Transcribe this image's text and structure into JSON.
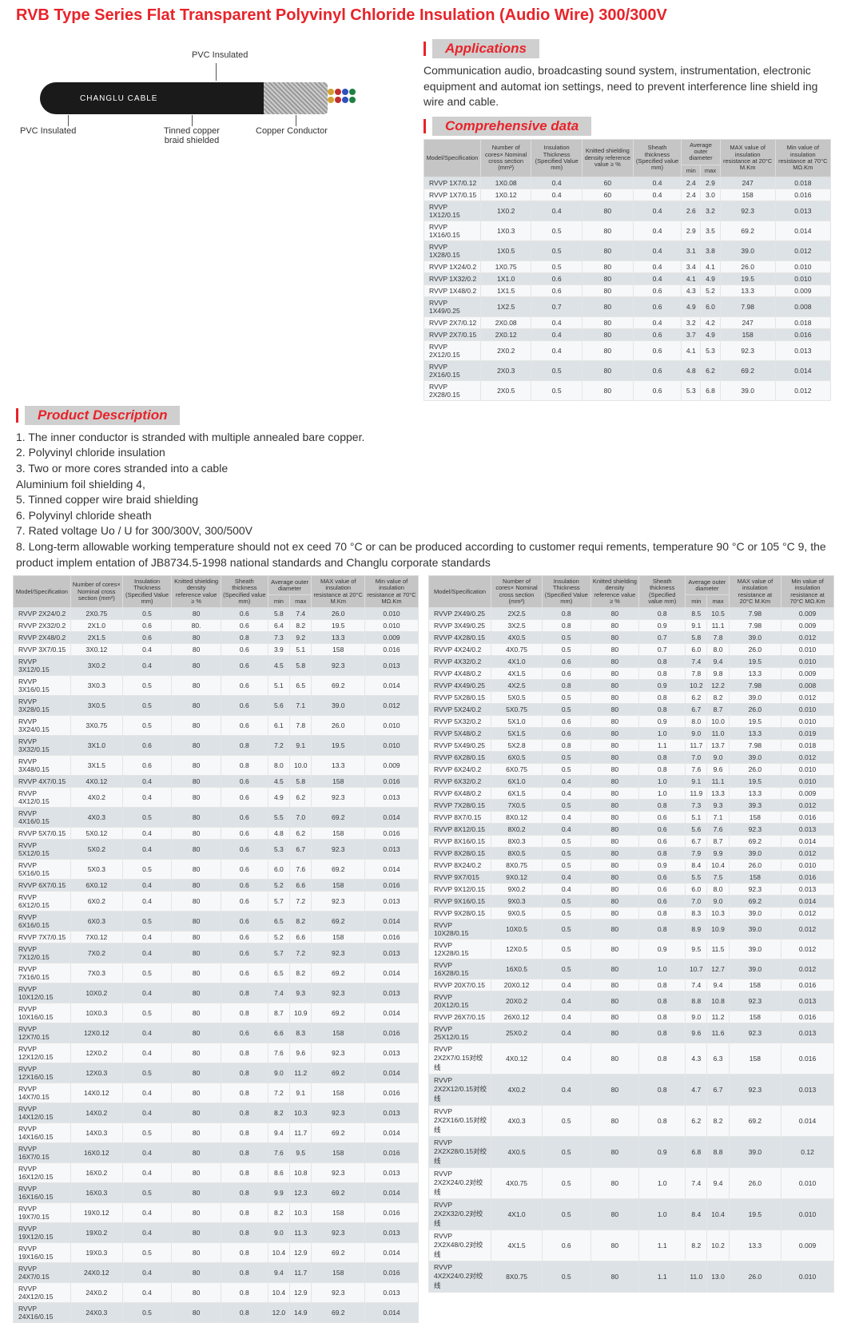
{
  "title": "RVB Type Series Flat Transparent Polyvinyl Chloride Insulation (Audio Wire) 300/300V",
  "diagram": {
    "brand": "CHANGLU CABLE",
    "labels": {
      "top": "PVC Insulated",
      "bl": "PVC Insulated",
      "bc": "Tinned copper braid shielded",
      "br": "Copper Conductor"
    },
    "conductor_colors": [
      "#d4a030",
      "#c03030",
      "#3050c0",
      "#208040"
    ]
  },
  "sections": {
    "applications": "Applications",
    "product_desc": "Product Description",
    "comp_data": "Comprehensive data"
  },
  "applications_text": "Communication audio, broadcasting sound system, instrumentation, electronic equipment and automat ion settings, need to prevent interference line shield ing wire and cable.",
  "desc_text": "1. The inner conductor is stranded with multiple annealed bare copper.\n2. Polyvinyl chloride insulation\n3. Two or more cores stranded into a cable\nAluminium foil shielding 4,\n5. Tinned copper wire braid shielding\n6. Polyvinyl chloride sheath\n7. Rated voltage Uo / U for 300/300V, 300/500V\n8. Long-term allowable working temperature should not ex ceed 70 °C or can be produced according to customer requi rements, temperature 90 °C or 105 °C 9, the product implem entation of JB8734.5-1998 national standards and Changlu corporate standards",
  "table_headers": [
    {
      "label": "Model/Specification",
      "span": 1
    },
    {
      "label": "Number of cores× Nominal cross section (mm²)",
      "span": 1
    },
    {
      "label": "Insulation Thickness (Specified Value mm)",
      "span": 1
    },
    {
      "label": "Knitted shielding density reference value ≥ %",
      "span": 1
    },
    {
      "label": "Sheath thickness (Specified value mm)",
      "span": 1
    },
    {
      "label": "Average outer diameter",
      "span": 2,
      "sub": [
        "min",
        "max"
      ]
    },
    {
      "label": "MAX value of insulation resistance at 20°C M.Km",
      "span": 1
    },
    {
      "label": "Min value of insulation resistance at 70°C MΩ.Km",
      "span": 1
    }
  ],
  "table_top_right": [
    [
      "RVVP 1X7/0.12",
      "1X0.08",
      "0.4",
      "60",
      "0.4",
      "2.4",
      "2.9",
      "247",
      "0.018"
    ],
    [
      "RVVP 1X7/0.15",
      "1X0.12",
      "0.4",
      "60",
      "0.4",
      "2.4",
      "3.0",
      "158",
      "0.016"
    ],
    [
      "RVVP 1X12/0.15",
      "1X0.2",
      "0.4",
      "80",
      "0.4",
      "2.6",
      "3.2",
      "92.3",
      "0.013"
    ],
    [
      "RVVP 1X16/0.15",
      "1X0.3",
      "0.5",
      "80",
      "0.4",
      "2.9",
      "3.5",
      "69.2",
      "0.014"
    ],
    [
      "RVVP 1X28/0.15",
      "1X0.5",
      "0.5",
      "80",
      "0.4",
      "3.1",
      "3.8",
      "39.0",
      "0.012"
    ],
    [
      "RVVP 1X24/0.2",
      "1X0.75",
      "0.5",
      "80",
      "0.4",
      "3.4",
      "4.1",
      "26.0",
      "0.010"
    ],
    [
      "RVVP 1X32/0.2",
      "1X1.0",
      "0.6",
      "80",
      "0.4",
      "4.1",
      "4.9",
      "19.5",
      "0.010"
    ],
    [
      "RVVP 1X48/0.2",
      "1X1.5",
      "0.6",
      "80",
      "0.6",
      "4.3",
      "5.2",
      "13.3",
      "0.009"
    ],
    [
      "RVVP 1X49/0.25",
      "1X2.5",
      "0.7",
      "80",
      "0.6",
      "4.9",
      "6.0",
      "7.98",
      "0.008"
    ],
    [
      "RVVP 2X7/0.12",
      "2X0.08",
      "0.4",
      "80",
      "0.4",
      "3.2",
      "4.2",
      "247",
      "0.018"
    ],
    [
      "RVVP 2X7/0.15",
      "2X0.12",
      "0.4",
      "80",
      "0.6",
      "3.7",
      "4.9",
      "158",
      "0.016"
    ],
    [
      "RVVP 2X12/0.15",
      "2X0.2",
      "0.4",
      "80",
      "0.6",
      "4.1",
      "5.3",
      "92.3",
      "0.013"
    ],
    [
      "RVVP 2X16/0.15",
      "2X0.3",
      "0.5",
      "80",
      "0.6",
      "4.8",
      "6.2",
      "69.2",
      "0.014"
    ],
    [
      "RVVP 2X28/0.15",
      "2X0.5",
      "0.5",
      "80",
      "0.6",
      "5.3",
      "6.8",
      "39.0",
      "0.012"
    ]
  ],
  "table_left": [
    [
      "RVVP 2X24/0.2",
      "2X0.75",
      "0.5",
      "80",
      "0.6",
      "5.8",
      "7.4",
      "26.0",
      "0.010"
    ],
    [
      "RVVP 2X32/0.2",
      "2X1.0",
      "0.6",
      "80.",
      "0.6",
      "6.4",
      "8.2",
      "19.5",
      "0.010"
    ],
    [
      "RVVP 2X48/0.2",
      "2X1.5",
      "0.6",
      "80",
      "0.8",
      "7.3",
      "9.2",
      "13.3",
      "0.009"
    ],
    [
      "RVVP 3X7/0.15",
      "3X0.12",
      "0.4",
      "80",
      "0.6",
      "3.9",
      "5.1",
      "158",
      "0.016"
    ],
    [
      "RVVP 3X12/0.15",
      "3X0.2",
      "0.4",
      "80",
      "0.6",
      "4.5",
      "5.8",
      "92.3",
      "0.013"
    ],
    [
      "RVVP 3X16/0.15",
      "3X0.3",
      "0.5",
      "80",
      "0.6",
      "5.1",
      "6.5",
      "69.2",
      "0.014"
    ],
    [
      "RVVP 3X28/0.15",
      "3X0.5",
      "0.5",
      "80",
      "0.6",
      "5.6",
      "7.1",
      "39.0",
      "0.012"
    ],
    [
      "RVVP 3X24/0.15",
      "3X0.75",
      "0.5",
      "80",
      "0.6",
      "6.1",
      "7.8",
      "26.0",
      "0.010"
    ],
    [
      "RVVP 3X32/0.15",
      "3X1.0",
      "0.6",
      "80",
      "0.8",
      "7.2",
      "9.1",
      "19.5",
      "0.010"
    ],
    [
      "RVVP 3X48/0.15",
      "3X1.5",
      "0.6",
      "80",
      "0.8",
      "8.0",
      "10.0",
      "13.3",
      "0.009"
    ],
    [
      "RVVP 4X7/0.15",
      "4X0.12",
      "0.4",
      "80",
      "0.6",
      "4.5",
      "5.8",
      "158",
      "0.016"
    ],
    [
      "RVVP 4X12/0.15",
      "4X0.2",
      "0.4",
      "80",
      "0.6",
      "4.9",
      "6.2",
      "92.3",
      "0.013"
    ],
    [
      "RVVP 4X16/0.15",
      "4X0.3",
      "0.5",
      "80",
      "0.6",
      "5.5",
      "7.0",
      "69.2",
      "0.014"
    ],
    [
      "RVVP 5X7/0.15",
      "5X0.12",
      "0.4",
      "80",
      "0.6",
      "4.8",
      "6.2",
      "158",
      "0.016"
    ],
    [
      "RVVP 5X12/0.15",
      "5X0.2",
      "0.4",
      "80",
      "0.6",
      "5.3",
      "6.7",
      "92.3",
      "0.013"
    ],
    [
      "RVVP 5X16/0.15",
      "5X0.3",
      "0.5",
      "80",
      "0.6",
      "6.0",
      "7.6",
      "69.2",
      "0.014"
    ],
    [
      "RVVP 6X7/0.15",
      "6X0.12",
      "0.4",
      "80",
      "0.6",
      "5.2",
      "6.6",
      "158",
      "0.016"
    ],
    [
      "RVVP 6X12/0.15",
      "6X0.2",
      "0.4",
      "80",
      "0.6",
      "5.7",
      "7.2",
      "92.3",
      "0.013"
    ],
    [
      "RVVP 6X16/0.15",
      "6X0.3",
      "0.5",
      "80",
      "0.6",
      "6.5",
      "8.2",
      "69.2",
      "0.014"
    ],
    [
      "RVVP 7X7/0.15",
      "7X0.12",
      "0.4",
      "80",
      "0.6",
      "5.2",
      "6.6",
      "158",
      "0.016"
    ],
    [
      "RVVP 7X12/0.15",
      "7X0.2",
      "0.4",
      "80",
      "0.6",
      "5.7",
      "7.2",
      "92.3",
      "0.013"
    ],
    [
      "RVVP 7X16/0.15",
      "7X0.3",
      "0.5",
      "80",
      "0.6",
      "6.5",
      "8.2",
      "69.2",
      "0.014"
    ],
    [
      "RVVP 10X12/0.15",
      "10X0.2",
      "0.4",
      "80",
      "0.8",
      "7.4",
      "9.3",
      "92.3",
      "0.013"
    ],
    [
      "RVVP 10X16/0.15",
      "10X0.3",
      "0.5",
      "80",
      "0.8",
      "8.7",
      "10.9",
      "69.2",
      "0.014"
    ],
    [
      "RVVP 12X7/0.15",
      "12X0.12",
      "0.4",
      "80",
      "0.6",
      "6.6",
      "8.3",
      "158",
      "0.016"
    ],
    [
      "RVVP 12X12/0.15",
      "12X0.2",
      "0.4",
      "80",
      "0.8",
      "7.6",
      "9.6",
      "92.3",
      "0.013"
    ],
    [
      "RVVP 12X16/0.15",
      "12X0.3",
      "0.5",
      "80",
      "0.8",
      "9.0",
      "11.2",
      "69.2",
      "0.014"
    ],
    [
      "RVVP 14X7/0.15",
      "14X0.12",
      "0.4",
      "80",
      "0.8",
      "7.2",
      "9.1",
      "158",
      "0.016"
    ],
    [
      "RVVP 14X12/0.15",
      "14X0.2",
      "0.4",
      "80",
      "0.8",
      "8.2",
      "10.3",
      "92.3",
      "0.013"
    ],
    [
      "RVVP 14X16/0.15",
      "14X0.3",
      "0.5",
      "80",
      "0.8",
      "9.4",
      "11.7",
      "69.2",
      "0.014"
    ],
    [
      "RVVP 16X7/0.15",
      "16X0.12",
      "0.4",
      "80",
      "0.8",
      "7.6",
      "9.5",
      "158",
      "0.016"
    ],
    [
      "RVVP 16X12/0.15",
      "16X0.2",
      "0.4",
      "80",
      "0.8",
      "8.6",
      "10.8",
      "92.3",
      "0.013"
    ],
    [
      "RVVP 16X16/0.15",
      "16X0.3",
      "0.5",
      "80",
      "0.8",
      "9.9",
      "12.3",
      "69.2",
      "0.014"
    ],
    [
      "RVVP 19X7/0.15",
      "19X0.12",
      "0.4",
      "80",
      "0.8",
      "8.2",
      "10.3",
      "158",
      "0.016"
    ],
    [
      "RVVP 19X12/0.15",
      "19X0.2",
      "0.4",
      "80",
      "0.8",
      "9.0",
      "11.3",
      "92.3",
      "0.013"
    ],
    [
      "RVVP 19X16/0.15",
      "19X0.3",
      "0.5",
      "80",
      "0.8",
      "10.4",
      "12.9",
      "69.2",
      "0.014"
    ],
    [
      "RVVP 24X7/0.15",
      "24X0.12",
      "0.4",
      "80",
      "0.8",
      "9.4",
      "11.7",
      "158",
      "0.016"
    ],
    [
      "RVVP 24X12/0.15",
      "24X0.2",
      "0.4",
      "80",
      "0.8",
      "10.4",
      "12.9",
      "92.3",
      "0.013"
    ],
    [
      "RVVP 24X16/0.15",
      "24X0.3",
      "0.5",
      "80",
      "0.8",
      "12.0",
      "14.9",
      "69.2",
      "0.014"
    ]
  ],
  "table_right": [
    [
      "RVVP 2X49/0.25",
      "2X2.5",
      "0.8",
      "80",
      "0.8",
      "8.5",
      "10.5",
      "7.98",
      "0.009"
    ],
    [
      "RVVP 3X49/0.25",
      "3X2.5",
      "0.8",
      "80",
      "0.9",
      "9.1",
      "11.1",
      "7.98",
      "0.009"
    ],
    [
      "RVVP 4X28/0.15",
      "4X0.5",
      "0.5",
      "80",
      "0.7",
      "5.8",
      "7.8",
      "39.0",
      "0.012"
    ],
    [
      "RVVP 4X24/0.2",
      "4X0.75",
      "0.5",
      "80",
      "0.7",
      "6.0",
      "8.0",
      "26.0",
      "0.010"
    ],
    [
      "RVVP 4X32/0.2",
      "4X1.0",
      "0.6",
      "80",
      "0.8",
      "7.4",
      "9.4",
      "19.5",
      "0.010"
    ],
    [
      "RVVP 4X48/0.2",
      "4X1.5",
      "0.6",
      "80",
      "0.8",
      "7.8",
      "9.8",
      "13.3",
      "0.009"
    ],
    [
      "RVVP 4X49/0.25",
      "4X2.5",
      "0.8",
      "80",
      "0.9",
      "10.2",
      "12.2",
      "7.98",
      "0.008"
    ],
    [
      "RVVP 5X28/0.15",
      "5X0.5",
      "0.5",
      "80",
      "0.8",
      "6.2",
      "8.2",
      "39.0",
      "0.012"
    ],
    [
      "RVVP 5X24/0.2",
      "5X0.75",
      "0.5",
      "80",
      "0.8",
      "6.7",
      "8.7",
      "26.0",
      "0.010"
    ],
    [
      "RVVP 5X32/0.2",
      "5X1.0",
      "0.6",
      "80",
      "0.9",
      "8.0",
      "10.0",
      "19.5",
      "0.010"
    ],
    [
      "RVVP 5X48/0.2",
      "5X1.5",
      "0.6",
      "80",
      "1.0",
      "9.0",
      "11.0",
      "13.3",
      "0.019"
    ],
    [
      "RVVP 5X49/0.25",
      "5X2.8",
      "0.8",
      "80",
      "1.1",
      "11.7",
      "13.7",
      "7.98",
      "0.018"
    ],
    [
      "RVVP 6X28/0.15",
      "6X0.5",
      "0.5",
      "80",
      "0.8",
      "7.0",
      "9.0",
      "39.0",
      "0.012"
    ],
    [
      "RVVP 6X24/0.2",
      "6X0.75",
      "0.5",
      "80",
      "0.8",
      "7.6",
      "9.6",
      "26.0",
      "0.010"
    ],
    [
      "RVVP 6X32/0.2",
      "6X1.0",
      "0.4",
      "80",
      "1.0",
      "9.1",
      "11.1",
      "19.5",
      "0.010"
    ],
    [
      "RVVP 6X48/0.2",
      "6X1.5",
      "0.4",
      "80",
      "1.0",
      "11.9",
      "13.3",
      "13.3",
      "0.009"
    ],
    [
      "RVVP 7X28/0.15",
      "7X0.5",
      "0.5",
      "80",
      "0.8",
      "7.3",
      "9.3",
      "39.3",
      "0.012"
    ],
    [
      "RVVP 8X7/0.15",
      "8X0.12",
      "0.4",
      "80",
      "0.6",
      "5.1",
      "7.1",
      "158",
      "0.016"
    ],
    [
      "RVVP 8X12/0.15",
      "8X0.2",
      "0.4",
      "80",
      "0.6",
      "5.6",
      "7.6",
      "92.3",
      "0.013"
    ],
    [
      "RVVP 8X16/0.15",
      "8X0.3",
      "0.5",
      "80",
      "0.6",
      "6.7",
      "8.7",
      "69.2",
      "0.014"
    ],
    [
      "RVVP 8X28/0.15",
      "8X0.5",
      "0.5",
      "80",
      "0.8",
      "7.9",
      "9.9",
      "39.0",
      "0.012"
    ],
    [
      "RVVP 8X24/0.2",
      "8X0.75",
      "0.5",
      "80",
      "0.9",
      "8.4",
      "10.4",
      "26.0",
      "0.010"
    ],
    [
      "RVVP 9X7/015",
      "9X0.12",
      "0.4",
      "80",
      "0.6",
      "5.5",
      "7.5",
      "158",
      "0.016"
    ],
    [
      "RVVP 9X12/0.15",
      "9X0.2",
      "0.4",
      "80",
      "0.6",
      "6.0",
      "8.0",
      "92.3",
      "0.013"
    ],
    [
      "RVVP 9X16/0.15",
      "9X0.3",
      "0.5",
      "80",
      "0.6",
      "7.0",
      "9.0",
      "69.2",
      "0.014"
    ],
    [
      "RVVP 9X28/0.15",
      "9X0.5",
      "0.5",
      "80",
      "0.8",
      "8.3",
      "10.3",
      "39.0",
      "0.012"
    ],
    [
      "RVVP 10X28/0.15",
      "10X0.5",
      "0.5",
      "80",
      "0.8",
      "8.9",
      "10.9",
      "39.0",
      "0.012"
    ],
    [
      "RVVP 12X28/0.15",
      "12X0.5",
      "0.5",
      "80",
      "0.9",
      "9.5",
      "11.5",
      "39.0",
      "0.012"
    ],
    [
      "RVVP 16X28/0.15",
      "16X0.5",
      "0.5",
      "80",
      "1.0",
      "10.7",
      "12.7",
      "39.0",
      "0.012"
    ],
    [
      "RVVP 20X7/0.15",
      "20X0.12",
      "0.4",
      "80",
      "0.8",
      "7.4",
      "9.4",
      "158",
      "0.016"
    ],
    [
      "RVVP 20X12/0.15",
      "20X0.2",
      "0.4",
      "80",
      "0.8",
      "8.8",
      "10.8",
      "92.3",
      "0.013"
    ],
    [
      "RVVP 26X7/0.15",
      "26X0.12",
      "0.4",
      "80",
      "0.8",
      "9.0",
      "11.2",
      "158",
      "0.016"
    ],
    [
      "RVVP 25X12/0.15",
      "25X0.2",
      "0.4",
      "80",
      "0.8",
      "9.6",
      "11.6",
      "92.3",
      "0.013"
    ],
    [
      "RVVP 2X2X7/0.15对绞线",
      "4X0.12",
      "0.4",
      "80",
      "0.8",
      "4.3",
      "6.3",
      "158",
      "0.016"
    ],
    [
      "RVVP 2X2X12/0.15对绞线",
      "4X0.2",
      "0.4",
      "80",
      "0.8",
      "4.7",
      "6.7",
      "92.3",
      "0.013"
    ],
    [
      "RVVP 2X2X16/0.15对绞线",
      "4X0.3",
      "0.5",
      "80",
      "0.8",
      "6.2",
      "8.2",
      "69.2",
      "0.014"
    ],
    [
      "RVVP 2X2X28/0.15对绞线",
      "4X0.5",
      "0.5",
      "80",
      "0.9",
      "6.8",
      "8.8",
      "39.0",
      "0.12"
    ],
    [
      "RVVP 2X2X24/0.2对绞线",
      "4X0.75",
      "0.5",
      "80",
      "1.0",
      "7.4",
      "9.4",
      "26.0",
      "0.010"
    ],
    [
      "RVVP 2X2X32/0.2对绞线",
      "4X1.0",
      "0.5",
      "80",
      "1.0",
      "8.4",
      "10.4",
      "19.5",
      "0.010"
    ],
    [
      "RVVP 2X2X48/0.2对绞线",
      "4X1.5",
      "0.6",
      "80",
      "1.1",
      "8.2",
      "10.2",
      "13.3",
      "0.009"
    ],
    [
      "RVVP 4X2X24/0.2对绞线",
      "8X0.75",
      "0.5",
      "80",
      "1.1",
      "11.0",
      "13.0",
      "26.0",
      "0.010"
    ]
  ]
}
